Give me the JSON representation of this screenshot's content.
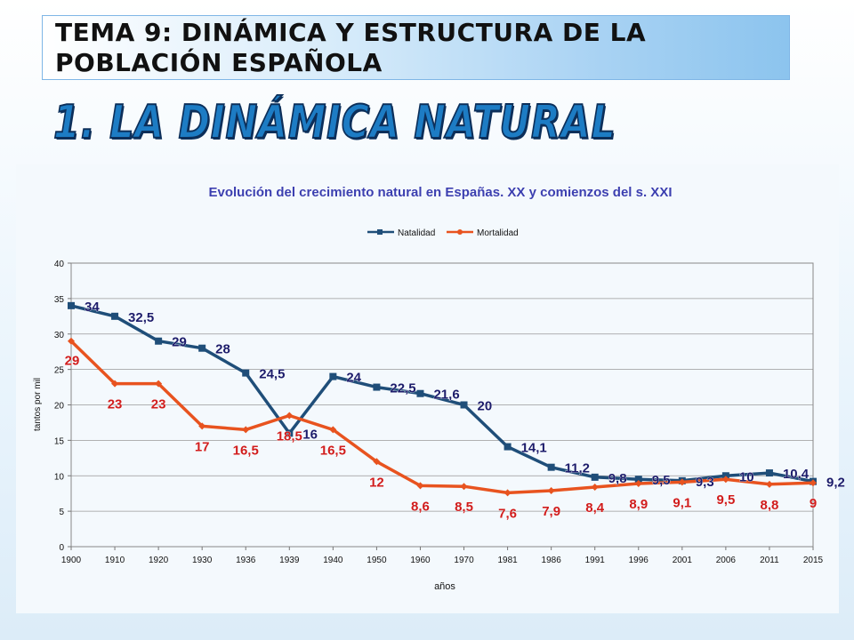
{
  "header": {
    "title_line1": "TEMA 9: DINÁMICA Y ESTRUCTURA DE LA",
    "title_line2": "POBLACIÓN ESPAÑOLA",
    "heading": "1. LA DINÁMICA NATURAL"
  },
  "colors": {
    "natalidad": "#1f4e79",
    "mortalidad": "#e8531f",
    "natalidad_label": "#1c1c6b",
    "mortalidad_label": "#d01c1c",
    "chart_title": "#3b3fb0"
  },
  "chart_data": {
    "type": "line",
    "title": "Evolución del crecimiento natural en Españas. XX y comienzos del s. XXI",
    "xlabel": "años",
    "ylabel": "tantos por mil",
    "ylim": [
      0,
      40
    ],
    "yticks": [
      "0",
      "5",
      "10",
      "15",
      "20",
      "25",
      "30",
      "35",
      "40"
    ],
    "grid": true,
    "legend_position": "top",
    "categories": [
      "1900",
      "1910",
      "1920",
      "1930",
      "1936",
      "1939",
      "1940",
      "1950",
      "1960",
      "1970",
      "1981",
      "1986",
      "1991",
      "1996",
      "2001",
      "2006",
      "2011",
      "2015"
    ],
    "series": [
      {
        "name": "Natalidad",
        "marker": "square",
        "values": [
          34,
          32.5,
          29,
          28,
          24.5,
          16,
          24,
          22.5,
          21.6,
          20,
          14.1,
          11.2,
          9.8,
          9.5,
          9.3,
          10,
          10.4,
          9.2
        ],
        "labels": [
          "34",
          "32,5",
          "29",
          "28",
          "24,5",
          "16",
          "24",
          "22,5",
          "21,6",
          "20",
          "14,1",
          "11,2",
          "9,8",
          "9,5",
          "9,3",
          "10",
          "10,4",
          "9,2"
        ]
      },
      {
        "name": "Mortalidad",
        "marker": "diamond",
        "values": [
          29,
          23,
          23,
          17,
          16.5,
          18.5,
          16.5,
          12,
          8.6,
          8.5,
          7.6,
          7.9,
          8.4,
          8.9,
          9.1,
          9.5,
          8.8,
          9
        ],
        "labels": [
          "29",
          "23",
          "23",
          "17",
          "16,5",
          "18,5",
          "16,5",
          "12",
          "8,6",
          "8,5",
          "7,6",
          "7,9",
          "8,4",
          "8,9",
          "9,1",
          "9,5",
          "8,8",
          "9"
        ]
      }
    ]
  }
}
